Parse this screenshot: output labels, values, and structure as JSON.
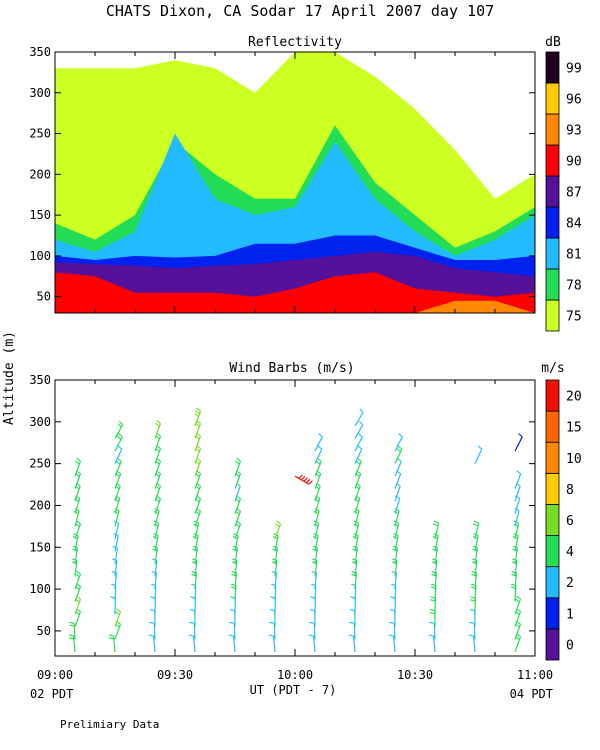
{
  "page": {
    "title": "CHATS Dixon, CA  Sodar  17 April 2007  day 107",
    "footer_note": "Prelimiary Data",
    "ylabel": "Altitude (m)",
    "xlabel": "UT  (PDT - 7)",
    "x_start_label": "02 PDT",
    "x_end_label": "04 PDT",
    "x_ticks": [
      "09:00",
      "09:30",
      "10:00",
      "10:30",
      "11:00"
    ],
    "colors": {
      "refl": [
        "#ccff22",
        "#22dd55",
        "#22bbff",
        "#0022ee",
        "#551199",
        "#ff0000",
        "#ff8800",
        "#ffcc00",
        "#220022"
      ],
      "wind": [
        "#551199",
        "#0022ee",
        "#22bbff",
        "#22dd55",
        "#77dd22",
        "#ffcc00",
        "#ff8800",
        "#ff6600",
        "#ee1100"
      ]
    }
  },
  "chart_data": [
    {
      "type": "heatmap",
      "title": "Reflectivity",
      "colorbar_label": "dB",
      "colorbar_ticks": [
        "75",
        "78",
        "81",
        "84",
        "87",
        "90",
        "93",
        "96",
        "99"
      ],
      "x": [
        "09:00",
        "09:10",
        "09:20",
        "09:30",
        "09:40",
        "09:50",
        "10:00",
        "10:10",
        "10:20",
        "10:30",
        "10:40",
        "10:50",
        "11:00"
      ],
      "y_ticks": [
        50,
        100,
        150,
        200,
        250,
        300,
        350
      ],
      "ylim": [
        30,
        350
      ],
      "xlim": [
        "09:00",
        "11:00"
      ],
      "layer_tops": [
        {
          "level": "75",
          "values": [
            330,
            330,
            330,
            340,
            330,
            300,
            350,
            350,
            320,
            280,
            230,
            170,
            200
          ]
        },
        {
          "level": "78",
          "values": [
            140,
            120,
            150,
            240,
            200,
            170,
            170,
            260,
            190,
            150,
            110,
            130,
            160
          ]
        },
        {
          "level": "81",
          "values": [
            120,
            105,
            130,
            250,
            170,
            150,
            160,
            240,
            170,
            130,
            100,
            120,
            150
          ]
        },
        {
          "level": "84",
          "values": [
            100,
            95,
            100,
            98,
            100,
            115,
            115,
            125,
            125,
            110,
            95,
            95,
            100
          ]
        },
        {
          "level": "87",
          "values": [
            92,
            90,
            88,
            85,
            88,
            90,
            95,
            100,
            105,
            100,
            85,
            80,
            75
          ]
        },
        {
          "level": "90",
          "values": [
            80,
            75,
            55,
            55,
            55,
            50,
            60,
            75,
            80,
            60,
            55,
            50,
            55
          ]
        },
        {
          "level": "93",
          "values": [
            0,
            0,
            0,
            0,
            0,
            0,
            0,
            0,
            0,
            0,
            45,
            45,
            0
          ]
        }
      ]
    },
    {
      "type": "scatter",
      "title": "Wind Barbs (m/s)",
      "colorbar_label": "m/s",
      "colorbar_ticks": [
        "0",
        "1",
        "2",
        "4",
        "6",
        "8",
        "10",
        "15",
        "20"
      ],
      "y_ticks": [
        50,
        100,
        150,
        200,
        250,
        300,
        350
      ],
      "ylim": [
        20,
        350
      ],
      "xlim": [
        "09:00",
        "11:00"
      ],
      "x_ticks": [
        "09:00",
        "09:30",
        "10:00",
        "10:30",
        "11:00"
      ],
      "heights": [
        25,
        40,
        55,
        70,
        85,
        100,
        115,
        130,
        145,
        160,
        175,
        190,
        205,
        220,
        235,
        250,
        265,
        280,
        295
      ],
      "profiles": [
        {
          "time": "09:05",
          "speeds": [
            4,
            4,
            5,
            6,
            5,
            5,
            4,
            4,
            4,
            5,
            4,
            4,
            4,
            5,
            5,
            0,
            0,
            0,
            0
          ]
        },
        {
          "time": "09:15",
          "speeds": [
            4,
            5,
            6,
            3,
            3,
            3,
            3,
            3,
            3,
            3,
            4,
            4,
            4,
            4,
            4,
            3,
            4,
            4,
            0
          ]
        },
        {
          "time": "09:25",
          "speeds": [
            3,
            3,
            3,
            3,
            3,
            3,
            3,
            4,
            4,
            4,
            4,
            5,
            5,
            5,
            5,
            5,
            5,
            6,
            0
          ]
        },
        {
          "time": "09:35",
          "speeds": [
            3,
            3,
            3,
            3,
            3,
            4,
            4,
            4,
            4,
            4,
            5,
            5,
            5,
            5,
            6,
            6,
            6,
            6,
            7
          ]
        },
        {
          "time": "09:45",
          "speeds": [
            3,
            3,
            3,
            3,
            4,
            4,
            4,
            4,
            4,
            5,
            5,
            5,
            3,
            5,
            5,
            0,
            0,
            0,
            0
          ]
        },
        {
          "time": "09:55",
          "speeds": [
            3,
            3,
            3,
            3,
            3,
            3,
            4,
            4,
            4,
            6,
            0,
            0,
            0,
            0,
            0,
            0,
            0,
            0,
            0
          ]
        },
        {
          "time": "10:00",
          "speeds": [
            0,
            0,
            0,
            0,
            0,
            0,
            0,
            0,
            0,
            0,
            0,
            0,
            0,
            0,
            20,
            0,
            0,
            0,
            0
          ]
        },
        {
          "time": "10:05",
          "speeds": [
            3,
            3,
            3,
            3,
            3,
            3,
            4,
            4,
            4,
            4,
            4,
            4,
            4,
            4,
            4,
            3,
            3,
            0,
            0
          ]
        },
        {
          "time": "10:15",
          "speeds": [
            3,
            3,
            3,
            3,
            3,
            4,
            4,
            4,
            4,
            4,
            4,
            4,
            4,
            4,
            4,
            3,
            3,
            3,
            3
          ]
        },
        {
          "time": "10:25",
          "speeds": [
            3,
            3,
            3,
            3,
            3,
            3,
            4,
            4,
            4,
            4,
            4,
            3,
            3,
            3,
            3,
            4,
            3,
            0,
            0
          ]
        },
        {
          "time": "10:35",
          "speeds": [
            3,
            3,
            4,
            4,
            4,
            4,
            4,
            4,
            4,
            4,
            0,
            0,
            0,
            0,
            0,
            0,
            0,
            0,
            0
          ]
        },
        {
          "time": "10:45",
          "speeds": [
            3,
            3,
            3,
            4,
            4,
            4,
            4,
            4,
            4,
            4,
            0,
            0,
            0,
            0,
            0,
            3,
            0,
            0,
            0
          ]
        },
        {
          "time": "10:55",
          "speeds": [
            5,
            5,
            5,
            5,
            4,
            4,
            4,
            4,
            4,
            4,
            3,
            3,
            3,
            3,
            0,
            0,
            1,
            0,
            0
          ]
        }
      ]
    }
  ]
}
